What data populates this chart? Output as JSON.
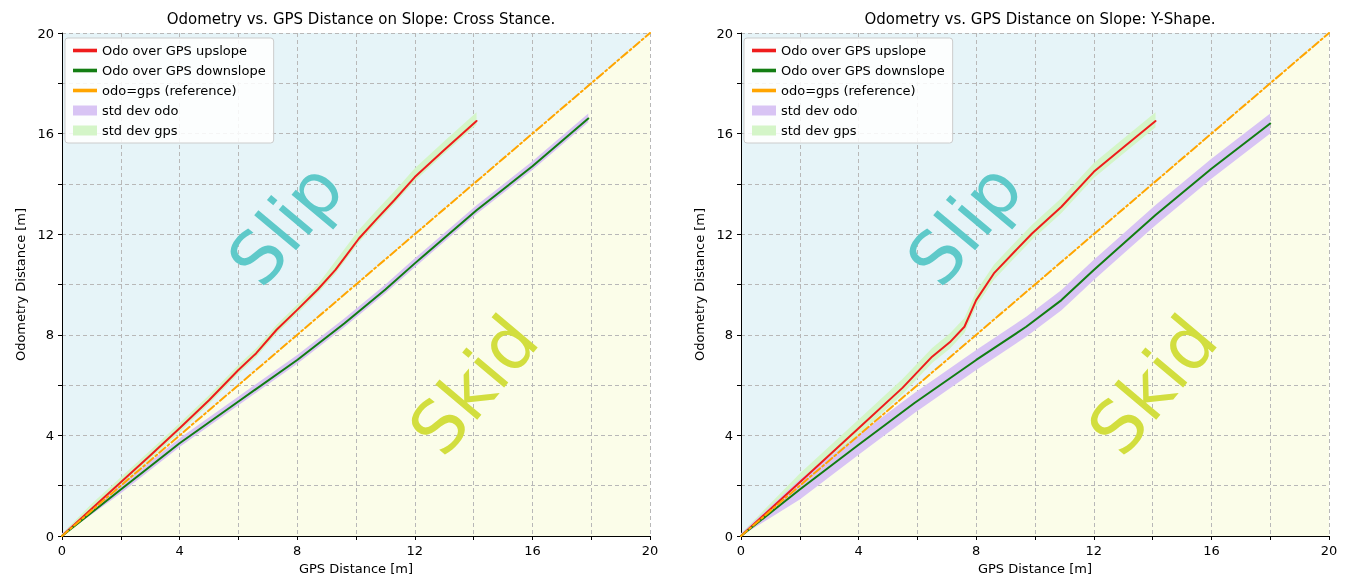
{
  "chart_data": [
    {
      "type": "line",
      "title": "Odometry vs. GPS Distance on Slope: Cross Stance.",
      "xlabel": "GPS Distance [m]",
      "ylabel": "Odometry Distance [m]",
      "xlim": [
        0,
        20
      ],
      "ylim": [
        0,
        20
      ],
      "xticks": [
        0,
        {
          "value": 2,
          "label": null
        },
        4,
        {
          "value": 6,
          "label": null
        },
        8,
        {
          "value": 10,
          "label": null
        },
        12,
        {
          "value": 14,
          "label": null
        },
        16,
        {
          "value": 18,
          "label": null
        },
        20
      ],
      "yticks": [
        0,
        {
          "value": 2,
          "label": null
        },
        4,
        {
          "value": 6,
          "label": null
        },
        8,
        {
          "value": 10,
          "label": null
        },
        12,
        {
          "value": 14,
          "label": null
        },
        16,
        {
          "value": 18,
          "label": null
        },
        20
      ],
      "grid": true,
      "legend": "top left",
      "annotations": [
        "Slip",
        "Skid"
      ],
      "series": [
        {
          "name": "Odo over GPS upslope",
          "color": "#ee1c1c",
          "x": [
            0,
            1,
            2,
            3,
            4,
            5,
            6,
            6.6,
            7.3,
            8,
            8.7,
            9.3,
            10.1,
            10.7,
            11.3,
            12,
            13,
            14.1
          ],
          "values": [
            0,
            1.07,
            2.14,
            3.2,
            4.28,
            5.4,
            6.6,
            7.26,
            8.2,
            8.99,
            9.8,
            10.58,
            11.83,
            12.6,
            13.35,
            14.27,
            15.35,
            16.5
          ],
          "lower": [
            0,
            0.92,
            1.99,
            3.05,
            4.13,
            5.25,
            6.45,
            7.11,
            8.05,
            8.84,
            9.65,
            10.43,
            11.68,
            12.45,
            13.2,
            14.12,
            15.2,
            16.35
          ],
          "upper": [
            0.1,
            1.27,
            2.34,
            3.4,
            4.48,
            5.6,
            6.8,
            7.46,
            8.4,
            9.19,
            10.0,
            10.93,
            12.18,
            12.95,
            13.7,
            14.62,
            15.7,
            16.85
          ]
        },
        {
          "name": "Odo over GPS downslope",
          "color": "#127d12",
          "x": [
            0,
            2,
            4,
            6,
            8,
            9.6,
            11,
            12,
            14.1,
            16,
            17.9
          ],
          "values": [
            0,
            1.85,
            3.69,
            5.35,
            7.0,
            8.45,
            9.8,
            10.84,
            12.95,
            14.7,
            16.6
          ],
          "lower": [
            0,
            1.7,
            3.54,
            5.2,
            6.85,
            8.3,
            9.65,
            10.69,
            12.8,
            14.55,
            16.45
          ],
          "upper": [
            0.1,
            2.05,
            3.89,
            5.55,
            7.2,
            8.65,
            10.0,
            11.04,
            13.15,
            14.9,
            16.8
          ]
        },
        {
          "name": "odo=gps (reference)",
          "color": "#ffa500",
          "line_style": "dashed",
          "x": [
            0,
            20
          ],
          "values": [
            0,
            20
          ]
        },
        {
          "name": "std dev odo",
          "type": "area",
          "color": "#d8c4f4"
        },
        {
          "name": "std dev gps",
          "type": "area",
          "color": "#d4f5c8"
        }
      ]
    },
    {
      "type": "line",
      "title": "Odometry vs. GPS Distance on Slope: Y-Shape.",
      "xlabel": "GPS Distance [m]",
      "ylabel": "Odometry Distance [m]",
      "xlim": [
        0,
        20
      ],
      "ylim": [
        0,
        20
      ],
      "xticks": [
        0,
        {
          "value": 2,
          "label": null
        },
        4,
        {
          "value": 6,
          "label": null
        },
        8,
        {
          "value": 10,
          "label": null
        },
        12,
        {
          "value": 14,
          "label": null
        },
        16,
        {
          "value": 18,
          "label": null
        },
        20
      ],
      "yticks": [
        0,
        {
          "value": 2,
          "label": null
        },
        4,
        {
          "value": 6,
          "label": null
        },
        8,
        {
          "value": 10,
          "label": null
        },
        12,
        {
          "value": 14,
          "label": null
        },
        16,
        {
          "value": 18,
          "label": null
        },
        20
      ],
      "grid": true,
      "legend": "top left",
      "annotations": [
        "Slip",
        "Skid"
      ],
      "series": [
        {
          "name": "Odo over GPS upslope",
          "color": "#ee1c1c",
          "x": [
            0,
            2,
            4,
            5.5,
            6.5,
            7.1,
            7.6,
            8,
            8.6,
            9.3,
            9.9,
            10.9,
            12,
            13,
            14.1
          ],
          "values": [
            0,
            2.14,
            4.28,
            5.9,
            7.13,
            7.7,
            8.32,
            9.38,
            10.44,
            11.3,
            12.03,
            13.09,
            14.48,
            15.45,
            16.5
          ],
          "lower": [
            0,
            1.89,
            4.03,
            5.65,
            6.88,
            7.45,
            8.07,
            9.13,
            10.19,
            11.05,
            11.78,
            12.84,
            14.23,
            15.2,
            16.25
          ],
          "upper": [
            0.1,
            2.49,
            4.63,
            6.25,
            7.48,
            8.05,
            8.67,
            9.73,
            10.79,
            11.65,
            12.38,
            13.44,
            14.83,
            15.8,
            16.85
          ]
        },
        {
          "name": "Odo over GPS downslope",
          "color": "#127d12",
          "x": [
            0,
            2,
            4,
            5.9,
            8,
            9.7,
            10.9,
            12,
            14.1,
            16,
            18
          ],
          "values": [
            0,
            1.85,
            3.63,
            5.29,
            7.0,
            8.32,
            9.38,
            10.58,
            12.76,
            14.6,
            16.4
          ],
          "lower": [
            0,
            1.45,
            3.23,
            4.89,
            6.6,
            7.92,
            8.98,
            10.18,
            12.36,
            14.2,
            16.0
          ],
          "upper": [
            0.1,
            2.25,
            4.03,
            5.69,
            7.4,
            8.72,
            9.78,
            10.98,
            13.16,
            15.0,
            16.8
          ]
        },
        {
          "name": "odo=gps (reference)",
          "color": "#ffa500",
          "line_style": "dashed",
          "x": [
            0,
            20
          ],
          "values": [
            0,
            20
          ]
        },
        {
          "name": "std dev odo",
          "type": "area",
          "color": "#d8c4f4"
        },
        {
          "name": "std dev gps",
          "type": "area",
          "color": "#d4f5c8"
        }
      ]
    }
  ]
}
